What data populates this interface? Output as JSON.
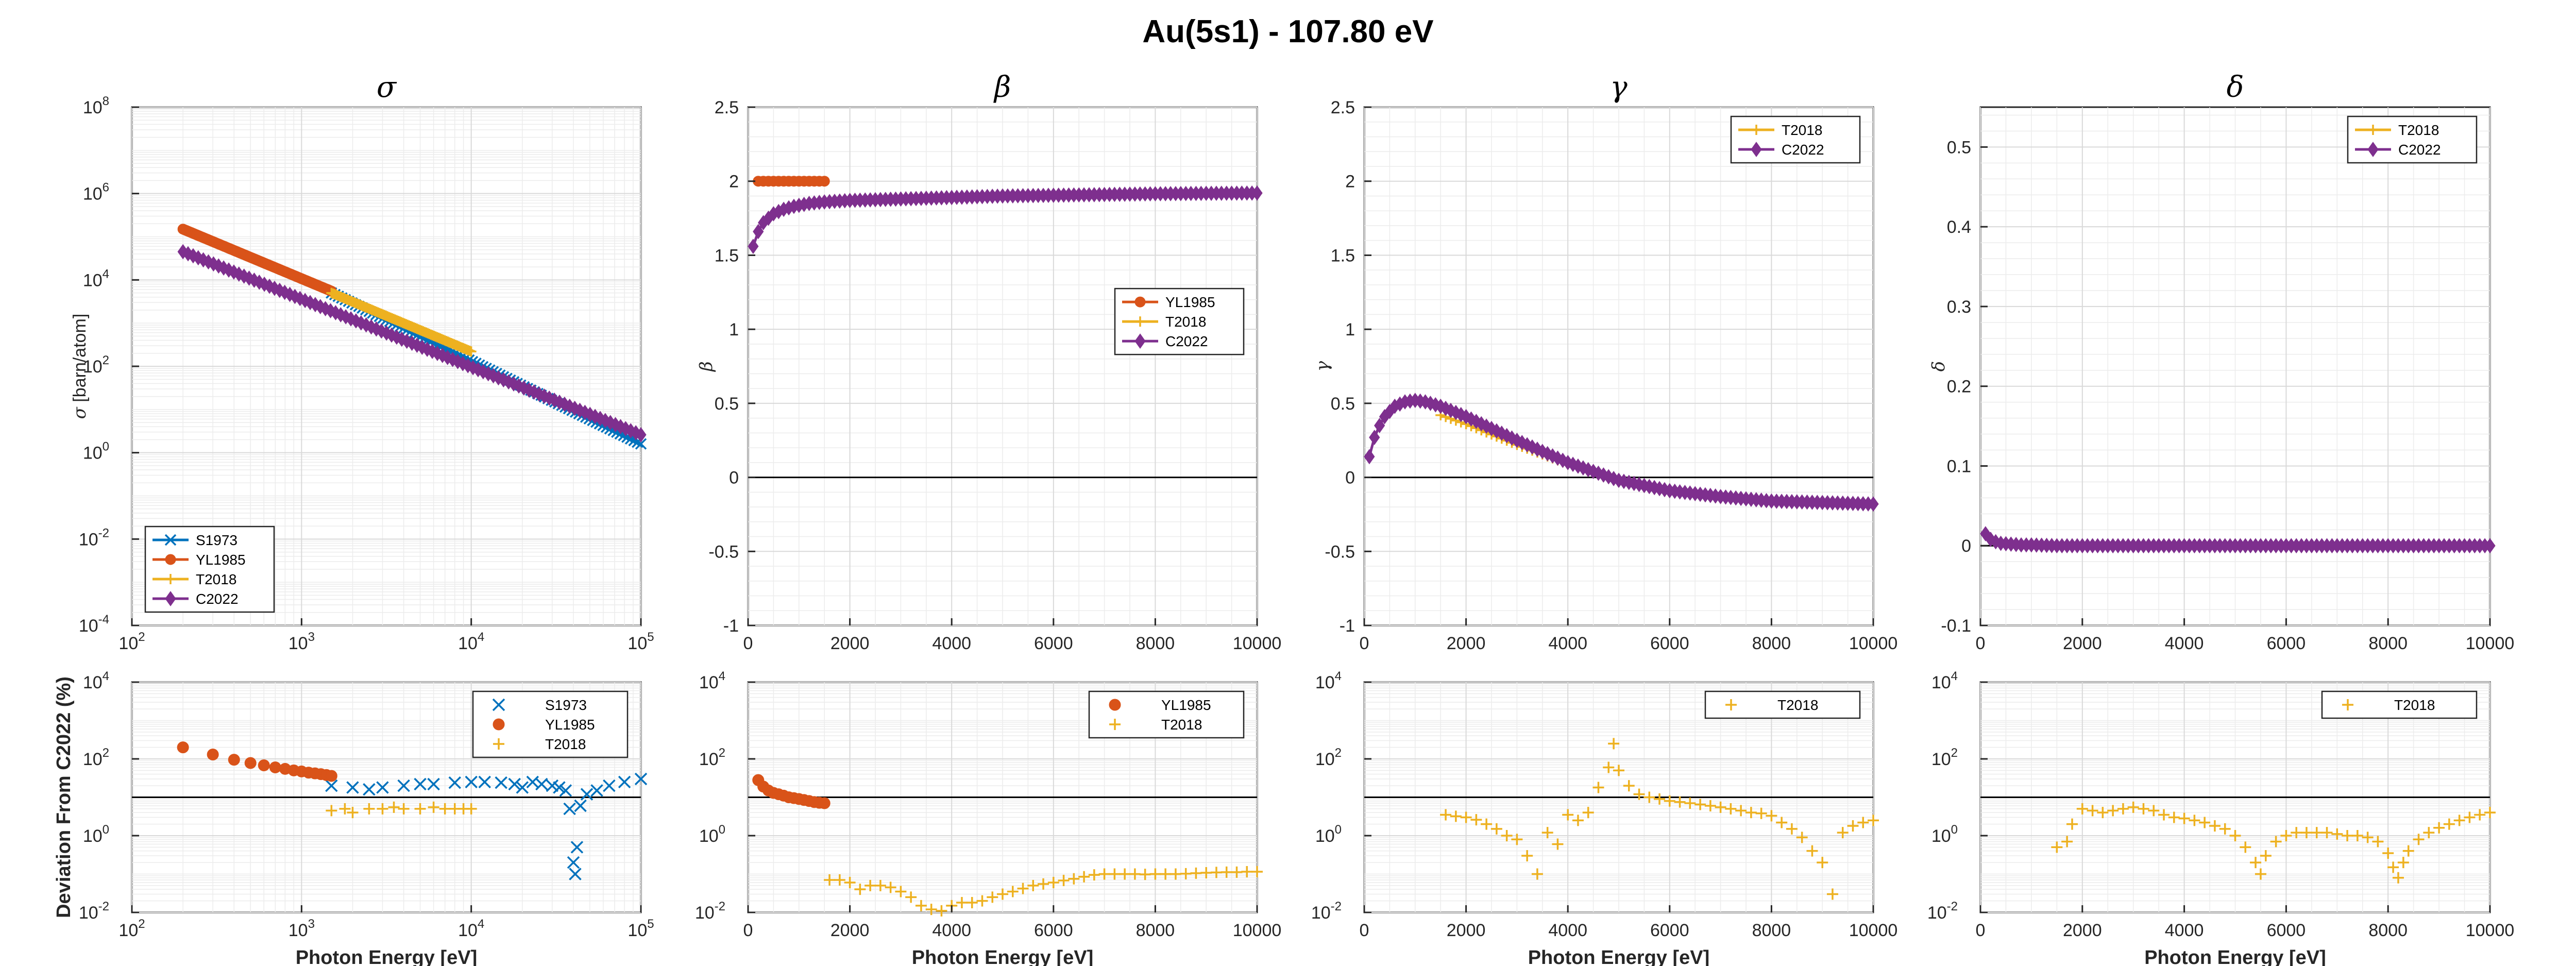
{
  "title": "Au(5s1) - 107.80 eV",
  "colors": {
    "S1973": "#0072BD",
    "YL1985": "#D95319",
    "T2018": "#EDB120",
    "C2022": "#7E2F8E"
  },
  "shared": {
    "xlabel": "Photon Energy [eV]",
    "dev_ylabel": "Deviation From C2022 (%)"
  },
  "chart_data": [
    {
      "id": "sigma",
      "type": "line",
      "title": "σ",
      "ylabel_sym": "σ",
      "ylabel_unit": " [barn/atom]",
      "xscale": "log",
      "yscale": "log",
      "xlim": [
        100,
        100000
      ],
      "ylim": [
        0.0001,
        100000000
      ],
      "xticks": [
        100,
        1000,
        10000,
        100000
      ],
      "xtick_labels": [
        "10",
        "10",
        "10",
        "10"
      ],
      "xtick_exps": [
        "2",
        "3",
        "4",
        "5"
      ],
      "yticks": [
        0.0001,
        0.01,
        1,
        100,
        10000,
        1000000,
        100000000
      ],
      "ytick_labels": [
        "10",
        "10",
        "10",
        "10",
        "10",
        "10",
        "10"
      ],
      "ytick_exps": [
        "-4",
        "-2",
        "0",
        "2",
        "4",
        "6",
        "8"
      ],
      "legend": [
        "S1973",
        "YL1985",
        "T2018",
        "C2022"
      ],
      "legend_position": "bottom-left",
      "grid": true,
      "series": [
        {
          "name": "S1973",
          "x_range": [
            1500,
            100000
          ],
          "y_range": [
            5000,
            1.6
          ],
          "scale": "log"
        },
        {
          "name": "YL1985",
          "x_range": [
            200,
            1500
          ],
          "y_range": [
            150000,
            5500
          ],
          "scale": "log"
        },
        {
          "name": "T2018",
          "x_range": [
            1500,
            10000
          ],
          "y_range": [
            5000,
            220
          ],
          "scale": "log"
        },
        {
          "name": "C2022",
          "x_range": [
            200,
            100000
          ],
          "y_range": [
            45000,
            2.6
          ],
          "scale": "log"
        }
      ]
    },
    {
      "id": "beta",
      "type": "line",
      "title": "β",
      "ylabel_sym": "β",
      "ylabel_unit": "",
      "xscale": "linear",
      "yscale": "linear",
      "xlim": [
        0,
        10000
      ],
      "ylim": [
        -1,
        2.5
      ],
      "xticks": [
        0,
        2000,
        4000,
        6000,
        8000,
        10000
      ],
      "xtick_labels": [
        "0",
        "2000",
        "4000",
        "6000",
        "8000",
        "10000"
      ],
      "yticks": [
        -1,
        -0.5,
        0,
        0.5,
        1,
        1.5,
        2,
        2.5
      ],
      "ytick_labels": [
        "-1",
        "-0.5",
        "0",
        "0.5",
        "1",
        "1.5",
        "2",
        "2.5"
      ],
      "legend": [
        "YL1985",
        "T2018",
        "C2022"
      ],
      "legend_position": "right",
      "grid": true,
      "series": [
        {
          "name": "YL1985",
          "x": [
            200,
            300,
            400,
            500,
            600,
            700,
            800,
            900,
            1000,
            1100,
            1200,
            1300,
            1400,
            1500
          ],
          "y": [
            2,
            2,
            2,
            2,
            2,
            2,
            2,
            2,
            2,
            2,
            2,
            2,
            2,
            2
          ]
        },
        {
          "name": "T2018",
          "x": [
            1500,
            2000,
            3000,
            4000,
            5000,
            6000,
            7000,
            8000,
            9000,
            10000
          ],
          "y": [
            1.86,
            1.87,
            1.88,
            1.89,
            1.9,
            1.905,
            1.91,
            1.915,
            1.918,
            1.92
          ]
        },
        {
          "name": "C2022",
          "x": [
            100,
            200,
            300,
            400,
            500,
            700,
            900,
            1200,
            1500,
            2000,
            3000,
            4000,
            5000,
            6000,
            7000,
            8000,
            9000,
            10000
          ],
          "y": [
            1.56,
            1.66,
            1.72,
            1.75,
            1.78,
            1.81,
            1.83,
            1.85,
            1.86,
            1.87,
            1.88,
            1.89,
            1.9,
            1.905,
            1.91,
            1.915,
            1.918,
            1.92
          ]
        }
      ]
    },
    {
      "id": "gamma",
      "type": "line",
      "title": "γ",
      "ylabel_sym": "γ",
      "ylabel_unit": "",
      "xscale": "linear",
      "yscale": "linear",
      "xlim": [
        0,
        10000
      ],
      "ylim": [
        -1,
        2.5
      ],
      "xticks": [
        0,
        2000,
        4000,
        6000,
        8000,
        10000
      ],
      "xtick_labels": [
        "0",
        "2000",
        "4000",
        "6000",
        "8000",
        "10000"
      ],
      "yticks": [
        -1,
        -0.5,
        0,
        0.5,
        1,
        1.5,
        2,
        2.5
      ],
      "ytick_labels": [
        "-1",
        "-0.5",
        "0",
        "0.5",
        "1",
        "1.5",
        "2",
        "2.5"
      ],
      "legend": [
        "T2018",
        "C2022"
      ],
      "legend_position": "top-right",
      "grid": true,
      "series": [
        {
          "name": "T2018",
          "x": [
            1500,
            2000,
            3000,
            4000,
            5000,
            6000,
            7000,
            8000,
            9000,
            10000
          ],
          "y": [
            0.42,
            0.36,
            0.22,
            0.09,
            -0.03,
            -0.1,
            -0.14,
            -0.16,
            -0.17,
            -0.18
          ]
        },
        {
          "name": "C2022",
          "x": [
            100,
            200,
            300,
            400,
            600,
            800,
            1000,
            1200,
            1500,
            2000,
            3000,
            4000,
            5000,
            6000,
            7000,
            8000,
            9000,
            10000
          ],
          "y": [
            0.14,
            0.27,
            0.35,
            0.41,
            0.48,
            0.51,
            0.52,
            0.51,
            0.48,
            0.41,
            0.25,
            0.1,
            -0.02,
            -0.09,
            -0.13,
            -0.16,
            -0.17,
            -0.18
          ]
        }
      ]
    },
    {
      "id": "delta",
      "type": "line",
      "title": "δ",
      "ylabel_sym": "δ",
      "ylabel_unit": "",
      "xscale": "linear",
      "yscale": "linear",
      "xlim": [
        0,
        10000
      ],
      "ylim": [
        -0.1,
        0.55
      ],
      "xticks": [
        0,
        2000,
        4000,
        6000,
        8000,
        10000
      ],
      "xtick_labels": [
        "0",
        "2000",
        "4000",
        "6000",
        "8000",
        "10000"
      ],
      "yticks": [
        -0.1,
        0,
        0.1,
        0.2,
        0.3,
        0.4,
        0.5
      ],
      "ytick_labels": [
        "-0.1",
        "0",
        "0.1",
        "0.2",
        "0.3",
        "0.4",
        "0.5"
      ],
      "legend": [
        "T2018",
        "C2022"
      ],
      "legend_position": "top-right",
      "grid": true,
      "series": [
        {
          "name": "T2018",
          "x": [
            1500,
            10000
          ],
          "y": [
            0,
            0
          ]
        },
        {
          "name": "C2022",
          "x": [
            100,
            200,
            300,
            400,
            600,
            800,
            1000,
            1500,
            2000,
            10000
          ],
          "y": [
            0.015,
            0.008,
            0.005,
            0.003,
            0.002,
            0.001,
            0.001,
            0,
            0,
            0
          ]
        }
      ]
    },
    {
      "id": "dev_sigma",
      "type": "scatter",
      "title": "",
      "xscale": "log",
      "yscale": "log",
      "xlim": [
        100,
        100000
      ],
      "ylim": [
        0.01,
        10000
      ],
      "xticks": [
        100,
        1000,
        10000,
        100000
      ],
      "xtick_labels": [
        "10",
        "10",
        "10",
        "10"
      ],
      "xtick_exps": [
        "2",
        "3",
        "4",
        "5"
      ],
      "yticks": [
        0.01,
        1,
        100,
        10000
      ],
      "ytick_labels": [
        "10",
        "10",
        "10",
        "10"
      ],
      "ytick_exps": [
        "-2",
        "0",
        "2",
        "4"
      ],
      "legend": [
        "S1973",
        "YL1985",
        "T2018"
      ],
      "legend_position": "top-right",
      "grid": true,
      "ref_line": 10,
      "series": [
        {
          "name": "S1973",
          "x": [
            1500,
            2000,
            2500,
            3000,
            4000,
            5000,
            6000,
            8000,
            10000,
            12000,
            15000,
            18000,
            20000,
            23000,
            26000,
            30000,
            33000,
            36000,
            38000,
            40000,
            41000,
            42000,
            44000,
            48000,
            55000,
            65000,
            80000,
            100000
          ],
          "y": [
            20,
            18,
            16,
            18,
            20,
            22,
            22,
            24,
            25,
            25,
            24,
            22,
            18,
            25,
            22,
            20,
            18,
            15,
            5,
            0.2,
            0.1,
            0.5,
            6,
            12,
            15,
            20,
            25,
            30
          ]
        },
        {
          "name": "YL1985",
          "x": [
            200,
            300,
            400,
            500,
            600,
            700,
            800,
            900,
            1000,
            1100,
            1200,
            1300,
            1400,
            1500
          ],
          "y": [
            200,
            130,
            95,
            78,
            68,
            60,
            55,
            50,
            47,
            44,
            42,
            40,
            38,
            36
          ]
        },
        {
          "name": "T2018",
          "x": [
            1500,
            1800,
            2000,
            2500,
            3000,
            3500,
            4000,
            5000,
            6000,
            7000,
            8000,
            9000,
            10000
          ],
          "y": [
            4.5,
            5,
            4,
            5,
            5,
            5.5,
            5,
            5,
            5.5,
            5,
            5,
            5,
            5
          ]
        }
      ]
    },
    {
      "id": "dev_beta",
      "type": "scatter",
      "title": "",
      "xscale": "linear",
      "yscale": "log",
      "xlim": [
        0,
        10000
      ],
      "ylim": [
        0.01,
        10000
      ],
      "xticks": [
        0,
        2000,
        4000,
        6000,
        8000,
        10000
      ],
      "xtick_labels": [
        "0",
        "2000",
        "4000",
        "6000",
        "8000",
        "10000"
      ],
      "yticks": [
        0.01,
        1,
        100,
        10000
      ],
      "ytick_labels": [
        "10",
        "10",
        "10",
        "10"
      ],
      "ytick_exps": [
        "-2",
        "0",
        "2",
        "4"
      ],
      "legend": [
        "YL1985",
        "T2018"
      ],
      "legend_position": "top-right",
      "grid": true,
      "ref_line": 10,
      "series": [
        {
          "name": "YL1985",
          "x": [
            200,
            300,
            400,
            500,
            600,
            700,
            800,
            900,
            1000,
            1100,
            1200,
            1300,
            1400,
            1500
          ],
          "y": [
            28,
            19,
            15,
            13,
            12,
            11,
            10,
            9.5,
            9,
            8.5,
            8,
            7.5,
            7.2,
            7
          ]
        },
        {
          "name": "T2018",
          "x": [
            1600,
            1800,
            2000,
            2200,
            2400,
            2600,
            2800,
            3000,
            3200,
            3400,
            3600,
            3800,
            4000,
            4200,
            4400,
            4600,
            4800,
            5000,
            5200,
            5400,
            5600,
            5800,
            6000,
            6200,
            6400,
            6600,
            6800,
            7000,
            7200,
            7400,
            7600,
            7800,
            8000,
            8200,
            8400,
            8600,
            8800,
            9000,
            9200,
            9400,
            9600,
            9800,
            10000
          ],
          "y": [
            0.07,
            0.07,
            0.06,
            0.04,
            0.05,
            0.05,
            0.045,
            0.035,
            0.025,
            0.015,
            0.012,
            0.011,
            0.015,
            0.018,
            0.018,
            0.02,
            0.025,
            0.03,
            0.035,
            0.042,
            0.05,
            0.055,
            0.06,
            0.068,
            0.075,
            0.085,
            0.095,
            0.1,
            0.1,
            0.1,
            0.1,
            0.098,
            0.1,
            0.1,
            0.1,
            0.102,
            0.105,
            0.108,
            0.11,
            0.112,
            0.112,
            0.115,
            0.115
          ]
        }
      ]
    },
    {
      "id": "dev_gamma",
      "type": "scatter",
      "title": "",
      "xscale": "linear",
      "yscale": "log",
      "xlim": [
        0,
        10000
      ],
      "ylim": [
        0.01,
        10000
      ],
      "xticks": [
        0,
        2000,
        4000,
        6000,
        8000,
        10000
      ],
      "xtick_labels": [
        "0",
        "2000",
        "4000",
        "6000",
        "8000",
        "10000"
      ],
      "yticks": [
        0.01,
        1,
        100,
        10000
      ],
      "ytick_labels": [
        "10",
        "10",
        "10",
        "10"
      ],
      "ytick_exps": [
        "-2",
        "0",
        "2",
        "4"
      ],
      "legend": [
        "T2018"
      ],
      "legend_position": "top-right",
      "grid": true,
      "ref_line": 10,
      "series": [
        {
          "name": "T2018",
          "x": [
            1600,
            1800,
            2000,
            2200,
            2400,
            2600,
            2800,
            3000,
            3200,
            3400,
            3600,
            3800,
            4000,
            4200,
            4400,
            4600,
            4800,
            4900,
            5000,
            5200,
            5400,
            5600,
            5800,
            6000,
            6200,
            6400,
            6600,
            6800,
            7000,
            7200,
            7400,
            7600,
            7800,
            8000,
            8200,
            8400,
            8600,
            8800,
            9000,
            9200,
            9400,
            9600,
            9800,
            10000
          ],
          "y": [
            3.5,
            3.2,
            3,
            2.6,
            2,
            1.5,
            1,
            0.8,
            0.3,
            0.1,
            1.2,
            0.6,
            3.5,
            2.5,
            4,
            18,
            60,
            250,
            50,
            20,
            12,
            10,
            9,
            8,
            7.5,
            7,
            6.5,
            6,
            5.5,
            5,
            4.5,
            4,
            3.8,
            3.3,
            2.2,
            1.5,
            0.9,
            0.4,
            0.2,
            0.03,
            1.2,
            1.8,
            2.2,
            2.5
          ]
        }
      ]
    },
    {
      "id": "dev_delta",
      "type": "scatter",
      "title": "",
      "xscale": "linear",
      "yscale": "log",
      "xlim": [
        0,
        10000
      ],
      "ylim": [
        0.01,
        10000
      ],
      "xticks": [
        0,
        2000,
        4000,
        6000,
        8000,
        10000
      ],
      "xtick_labels": [
        "0",
        "2000",
        "4000",
        "6000",
        "8000",
        "10000"
      ],
      "yticks": [
        0.01,
        1,
        100,
        10000
      ],
      "ytick_labels": [
        "10",
        "10",
        "10",
        "10"
      ],
      "ytick_exps": [
        "-2",
        "0",
        "2",
        "4"
      ],
      "legend": [
        "T2018"
      ],
      "legend_position": "top-right",
      "grid": true,
      "ref_line": 10,
      "series": [
        {
          "name": "T2018",
          "x": [
            1500,
            1700,
            1800,
            2000,
            2200,
            2400,
            2600,
            2800,
            3000,
            3200,
            3400,
            3600,
            3800,
            4000,
            4200,
            4400,
            4600,
            4800,
            5000,
            5200,
            5400,
            5500,
            5600,
            5800,
            6000,
            6200,
            6400,
            6600,
            6800,
            7000,
            7200,
            7400,
            7600,
            7800,
            8000,
            8100,
            8200,
            8300,
            8400,
            8600,
            8800,
            9000,
            9200,
            9400,
            9600,
            9800,
            10000
          ],
          "y": [
            0.5,
            0.7,
            2,
            5,
            4.5,
            4,
            4.5,
            5,
            5.5,
            5,
            4.5,
            3.5,
            3,
            2.8,
            2.5,
            2.2,
            1.8,
            1.5,
            1,
            0.5,
            0.2,
            0.1,
            0.3,
            0.7,
            1,
            1.2,
            1.2,
            1.2,
            1.2,
            1.1,
            1,
            1,
            0.9,
            0.7,
            0.35,
            0.15,
            0.08,
            0.2,
            0.4,
            0.8,
            1.2,
            1.6,
            2,
            2.5,
            3,
            3.5,
            4
          ]
        }
      ]
    }
  ]
}
